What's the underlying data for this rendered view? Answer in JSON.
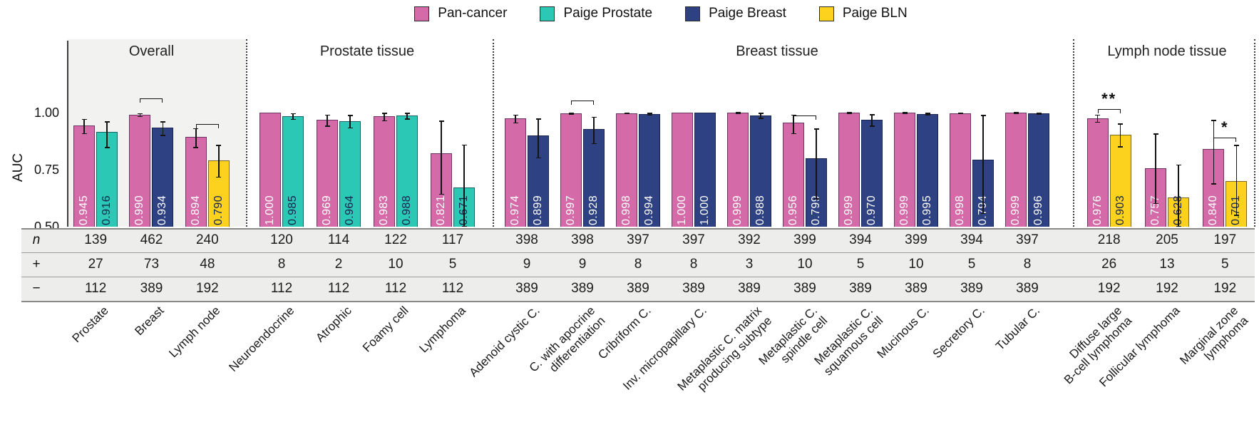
{
  "legend": {
    "items": [
      {
        "label": "Pan-cancer",
        "color": "#d46ba8",
        "value_text_color": "#ffffff"
      },
      {
        "label": "Paige Prostate",
        "color": "#2cc8b6",
        "value_text_color": "#16254e"
      },
      {
        "label": "Paige Breast",
        "color": "#2e4183",
        "value_text_color": "#ffffff"
      },
      {
        "label": "Paige BLN",
        "color": "#fdd21f",
        "value_text_color": "#16254e"
      }
    ]
  },
  "table": {
    "row_labels": [
      "n",
      "+",
      "−"
    ]
  },
  "chart_data": {
    "type": "bar",
    "ylabel": "AUC",
    "ylim": [
      0.5,
      1.0
    ],
    "yticks": [
      {
        "label": "1.00",
        "value": 1.0
      },
      {
        "label": "0.75",
        "value": 0.75
      },
      {
        "label": "0.50",
        "value": 0.5
      }
    ],
    "grid": false,
    "legend_position": "top-center",
    "sections": [
      {
        "title": "Overall",
        "highlight": true,
        "groups": [
          {
            "label_lines": [
              "Prostate"
            ],
            "n": 139,
            "plus": 27,
            "minus": 112,
            "sig": null,
            "bars": [
              {
                "series": "Pan-cancer",
                "value": 0.945,
                "ci": [
                  0.905,
                  0.972
                ]
              },
              {
                "series": "Paige Prostate",
                "value": 0.916,
                "ci": [
                  0.845,
                  0.962
                ]
              }
            ]
          },
          {
            "label_lines": [
              "Breast"
            ],
            "n": 462,
            "plus": 73,
            "minus": 389,
            "sig": {
              "stars": "",
              "y": 1.045
            },
            "bars": [
              {
                "series": "Pan-cancer",
                "value": 0.99,
                "ci": [
                  0.98,
                  0.997
                ]
              },
              {
                "series": "Paige Breast",
                "value": 0.934,
                "ci": [
                  0.897,
                  0.962
                ]
              }
            ]
          },
          {
            "label_lines": [
              "Lymph node"
            ],
            "n": 240,
            "plus": 48,
            "minus": 192,
            "sig": {
              "stars": "",
              "y": 0.932
            },
            "bars": [
              {
                "series": "Pan-cancer",
                "value": 0.894,
                "ci": [
                  0.845,
                  0.932
                ]
              },
              {
                "series": "Paige BLN",
                "value": 0.79,
                "ci": [
                  0.715,
                  0.858
                ]
              }
            ]
          }
        ]
      },
      {
        "title": "Prostate tissue",
        "highlight": false,
        "groups": [
          {
            "label_lines": [
              "Neuroendocrine"
            ],
            "n": 120,
            "plus": 8,
            "minus": 112,
            "sig": null,
            "bars": [
              {
                "series": "Pan-cancer",
                "value": 1.0,
                "ci": [
                  1.0,
                  1.0
                ]
              },
              {
                "series": "Paige Prostate",
                "value": 0.985,
                "ci": [
                  0.968,
                  0.998
                ]
              }
            ]
          },
          {
            "label_lines": [
              "Atrophic"
            ],
            "n": 114,
            "plus": 2,
            "minus": 112,
            "sig": null,
            "bars": [
              {
                "series": "Pan-cancer",
                "value": 0.969,
                "ci": [
                  0.938,
                  0.992
                ]
              },
              {
                "series": "Paige Prostate",
                "value": 0.964,
                "ci": [
                  0.93,
                  0.99
                ]
              }
            ]
          },
          {
            "label_lines": [
              "Foamy cell"
            ],
            "n": 122,
            "plus": 10,
            "minus": 112,
            "sig": null,
            "bars": [
              {
                "series": "Pan-cancer",
                "value": 0.983,
                "ci": [
                  0.962,
                  0.999
                ]
              },
              {
                "series": "Paige Prostate",
                "value": 0.988,
                "ci": [
                  0.97,
                  1.0
                ]
              }
            ]
          },
          {
            "label_lines": [
              "Lymphoma"
            ],
            "n": 117,
            "plus": 5,
            "minus": 112,
            "sig": null,
            "bars": [
              {
                "series": "Pan-cancer",
                "value": 0.821,
                "ci": [
                  0.64,
                  0.965
                ]
              },
              {
                "series": "Paige Prostate",
                "value": 0.671,
                "ci": [
                  0.5,
                  0.86
                ]
              }
            ]
          }
        ]
      },
      {
        "title": "Breast tissue",
        "highlight": false,
        "groups": [
          {
            "label_lines": [
              "Adenoid cystic C."
            ],
            "n": 398,
            "plus": 9,
            "minus": 389,
            "sig": null,
            "bars": [
              {
                "series": "Pan-cancer",
                "value": 0.974,
                "ci": [
                  0.952,
                  0.992
                ]
              },
              {
                "series": "Paige Breast",
                "value": 0.899,
                "ci": [
                  0.8,
                  0.975
                ]
              }
            ]
          },
          {
            "label_lines": [
              "C. with apocrine",
              "differentiation"
            ],
            "n": 398,
            "plus": 9,
            "minus": 389,
            "sig": {
              "stars": "",
              "y": 1.035
            },
            "bars": [
              {
                "series": "Pan-cancer",
                "value": 0.997,
                "ci": [
                  0.992,
                  1.0
                ]
              },
              {
                "series": "Paige Breast",
                "value": 0.928,
                "ci": [
                  0.862,
                  0.982
                ]
              }
            ]
          },
          {
            "label_lines": [
              "Cribriform C."
            ],
            "n": 397,
            "plus": 8,
            "minus": 389,
            "sig": null,
            "bars": [
              {
                "series": "Pan-cancer",
                "value": 0.998,
                "ci": [
                  0.995,
                  1.0
                ]
              },
              {
                "series": "Paige Breast",
                "value": 0.994,
                "ci": [
                  0.986,
                  1.0
                ]
              }
            ]
          },
          {
            "label_lines": [
              "Inv. micropapillary C."
            ],
            "n": 397,
            "plus": 8,
            "minus": 389,
            "sig": null,
            "bars": [
              {
                "series": "Pan-cancer",
                "value": 1.0,
                "ci": [
                  1.0,
                  1.0
                ]
              },
              {
                "series": "Paige Breast",
                "value": 1.0,
                "ci": [
                  1.0,
                  1.0
                ]
              }
            ]
          },
          {
            "label_lines": [
              "Metaplastic C. matrix",
              "producing subtype"
            ],
            "n": 392,
            "plus": 3,
            "minus": 389,
            "sig": null,
            "bars": [
              {
                "series": "Pan-cancer",
                "value": 0.999,
                "ci": [
                  0.997,
                  1.0
                ]
              },
              {
                "series": "Paige Breast",
                "value": 0.988,
                "ci": [
                  0.972,
                  0.999
                ]
              }
            ]
          },
          {
            "label_lines": [
              "Metaplastic C.",
              "spindle cell"
            ],
            "n": 399,
            "plus": 10,
            "minus": 389,
            "sig": {
              "stars": "",
              "y": 0.968
            },
            "bars": [
              {
                "series": "Pan-cancer",
                "value": 0.956,
                "ci": [
                  0.905,
                  0.992
                ]
              },
              {
                "series": "Paige Breast",
                "value": 0.799,
                "ci": [
                  0.62,
                  0.93
                ]
              }
            ]
          },
          {
            "label_lines": [
              "Metaplastic C.",
              "squamous cell"
            ],
            "n": 394,
            "plus": 5,
            "minus": 389,
            "sig": null,
            "bars": [
              {
                "series": "Pan-cancer",
                "value": 0.999,
                "ci": [
                  0.997,
                  1.0
                ]
              },
              {
                "series": "Paige Breast",
                "value": 0.97,
                "ci": [
                  0.938,
                  0.993
                ]
              }
            ]
          },
          {
            "label_lines": [
              "Mucinous C."
            ],
            "n": 399,
            "plus": 10,
            "minus": 389,
            "sig": null,
            "bars": [
              {
                "series": "Pan-cancer",
                "value": 0.999,
                "ci": [
                  0.997,
                  1.0
                ]
              },
              {
                "series": "Paige Breast",
                "value": 0.995,
                "ci": [
                  0.989,
                  1.0
                ]
              }
            ]
          },
          {
            "label_lines": [
              "Secretory C."
            ],
            "n": 394,
            "plus": 5,
            "minus": 389,
            "sig": null,
            "bars": [
              {
                "series": "Pan-cancer",
                "value": 0.998,
                "ci": [
                  0.995,
                  1.0
                ]
              },
              {
                "series": "Paige Breast",
                "value": 0.794,
                "ci": [
                  0.555,
                  0.99
                ]
              }
            ]
          },
          {
            "label_lines": [
              "Tubular C."
            ],
            "n": 397,
            "plus": 8,
            "minus": 389,
            "sig": null,
            "bars": [
              {
                "series": "Pan-cancer",
                "value": 0.999,
                "ci": [
                  0.997,
                  1.0
                ]
              },
              {
                "series": "Paige Breast",
                "value": 0.996,
                "ci": [
                  0.99,
                  1.0
                ]
              }
            ]
          }
        ]
      },
      {
        "title": "Lymph node tissue",
        "highlight": false,
        "groups": [
          {
            "label_lines": [
              "Diffuse large",
              "B-cell lymphoma"
            ],
            "n": 218,
            "plus": 26,
            "minus": 192,
            "sig": {
              "stars": "**",
              "y": 0.998
            },
            "bars": [
              {
                "series": "Pan-cancer",
                "value": 0.976,
                "ci": [
                  0.955,
                  0.992
                ]
              },
              {
                "series": "Paige BLN",
                "value": 0.903,
                "ci": [
                  0.848,
                  0.952
                ]
              }
            ]
          },
          {
            "label_lines": [
              "Follicular lymphoma"
            ],
            "n": 205,
            "plus": 13,
            "minus": 192,
            "sig": null,
            "bars": [
              {
                "series": "Pan-cancer",
                "value": 0.757,
                "ci": [
                  0.6,
                  0.908
                ]
              },
              {
                "series": "Paige BLN",
                "value": 0.628,
                "ci": [
                  0.5,
                  0.772
                ]
              }
            ]
          },
          {
            "label_lines": [
              "Marginal zone",
              "lymphoma"
            ],
            "n": 197,
            "plus": 5,
            "minus": 192,
            "sig": {
              "stars": "*",
              "y": 0.872
            },
            "bars": [
              {
                "series": "Pan-cancer",
                "value": 0.84,
                "ci": [
                  0.685,
                  0.968
                ]
              },
              {
                "series": "Paige BLN",
                "value": 0.701,
                "ci": [
                  0.548,
                  0.858
                ]
              }
            ]
          }
        ]
      }
    ]
  }
}
